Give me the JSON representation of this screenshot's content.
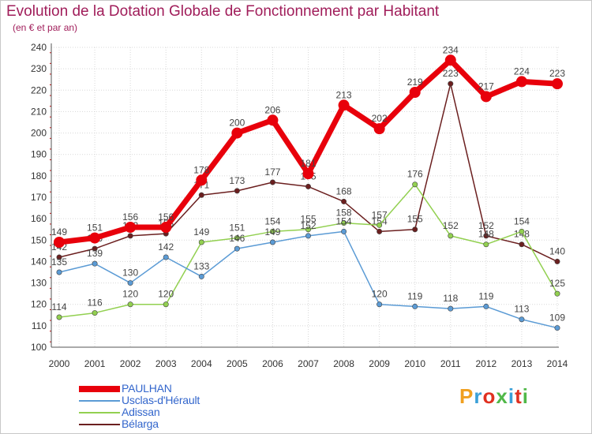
{
  "header": {
    "title": "Evolution de la Dotation Globale de Fonctionnement par Habitant",
    "subtitle": "(en € et par an)"
  },
  "logo": {
    "text": "Proxiti",
    "colors": [
      "#f0a020",
      "#3aa0d8",
      "#e03020",
      "#50b848",
      "#3aa0d8",
      "#e03020",
      "#50b848"
    ]
  },
  "chart_data": {
    "type": "line",
    "x": [
      "2000",
      "2001",
      "2002",
      "2003",
      "2004",
      "2005",
      "2006",
      "2007",
      "2008",
      "2009",
      "2010",
      "2011",
      "2012",
      "2013",
      "2014"
    ],
    "ylim": [
      100,
      240
    ],
    "yticks": [
      100,
      110,
      120,
      130,
      140,
      150,
      160,
      170,
      180,
      190,
      200,
      210,
      220,
      230,
      240
    ],
    "grid": true,
    "legend_position": "bottom-left",
    "series": [
      {
        "name": "PAULHAN",
        "color": "#e8000b",
        "values": [
          149,
          151,
          156,
          156,
          178,
          200,
          206,
          181,
          213,
          202,
          219,
          234,
          217,
          224,
          223
        ]
      },
      {
        "name": "Usclas-d'Hérault",
        "color": "#5b9bd5",
        "values": [
          135,
          139,
          130,
          142,
          133,
          146,
          149,
          152,
          154,
          120,
          119,
          118,
          119,
          113,
          109
        ]
      },
      {
        "name": "Adissan",
        "color": "#92d050",
        "values": [
          114,
          116,
          120,
          120,
          149,
          151,
          154,
          155,
          158,
          157,
          176,
          152,
          148,
          154,
          125
        ]
      },
      {
        "name": "Bélarga",
        "color": "#6b1f1f",
        "values": [
          142,
          146,
          152,
          153,
          171,
          173,
          177,
          175,
          168,
          154,
          155,
          223,
          152,
          148,
          140
        ]
      }
    ]
  }
}
